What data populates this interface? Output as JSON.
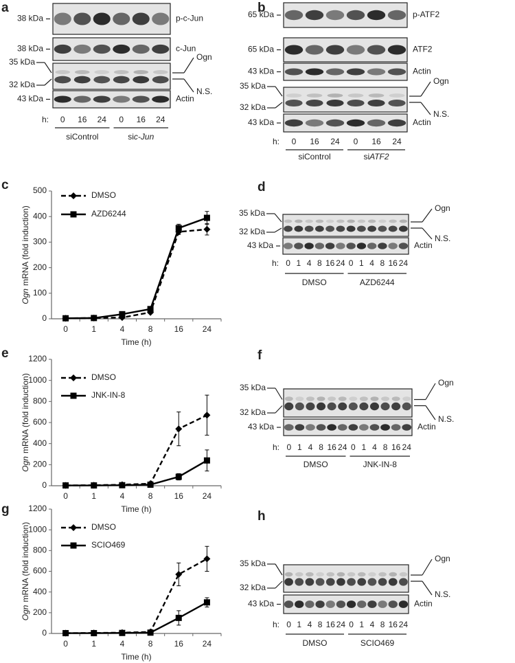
{
  "blots": [
    {
      "label": "a",
      "rows": [
        {
          "markers": [
            "38 kDa"
          ],
          "names": [
            "p-c-Jun"
          ]
        },
        {
          "markers": [
            "38 kDa"
          ],
          "names": [
            "c-Jun"
          ]
        },
        {
          "markers": [
            "35 kDa",
            "32 kDa"
          ],
          "names": [
            "Ogn",
            "N.S."
          ]
        },
        {
          "markers": [
            "43 kDa"
          ],
          "names": [
            "Actin"
          ]
        }
      ],
      "time_label": "h:",
      "times": [
        "0",
        "16",
        "24",
        "0",
        "16",
        "24"
      ],
      "groups": [
        {
          "text": "siControl"
        },
        {
          "text": "si",
          "italic": "c-Jun"
        }
      ]
    },
    {
      "label": "b",
      "rows": [
        {
          "markers": [
            "65 kDa"
          ],
          "names": [
            "p-ATF2"
          ]
        },
        {
          "markers": [
            "65 kDa"
          ],
          "names": [
            "ATF2"
          ]
        },
        {
          "markers": [
            "43 kDa"
          ],
          "names": [
            "Actin"
          ]
        },
        {
          "markers": [
            "35 kDa",
            "32 kDa"
          ],
          "names": [
            "Ogn",
            "N.S."
          ]
        },
        {
          "markers": [
            "43 kDa"
          ],
          "names": [
            "Actin"
          ]
        }
      ],
      "time_label": "h:",
      "times": [
        "0",
        "16",
        "24",
        "0",
        "16",
        "24"
      ],
      "groups": [
        {
          "text": "siControl"
        },
        {
          "text": "si",
          "italic": "ATF2"
        }
      ]
    },
    {
      "label": "d",
      "rows": [
        {
          "markers": [
            "35 kDa",
            "32 kDa"
          ],
          "names": [
            "Ogn",
            "N.S."
          ]
        },
        {
          "markers": [
            "43 kDa"
          ],
          "names": [
            "Actin"
          ]
        }
      ],
      "time_label": "h:",
      "times": [
        "0",
        "1",
        "4",
        "8",
        "16",
        "24",
        "0",
        "1",
        "4",
        "8",
        "16",
        "24"
      ],
      "groups": [
        {
          "text": "DMSO"
        },
        {
          "text": "AZD6244"
        }
      ]
    },
    {
      "label": "f",
      "rows": [
        {
          "markers": [
            "35 kDa",
            "32 kDa"
          ],
          "names": [
            "Ogn",
            "N.S."
          ]
        },
        {
          "markers": [
            "43 kDa"
          ],
          "names": [
            "Actin"
          ]
        }
      ],
      "time_label": "h:",
      "times": [
        "0",
        "1",
        "4",
        "8",
        "16",
        "24",
        "0",
        "1",
        "4",
        "8",
        "16",
        "24"
      ],
      "groups": [
        {
          "text": "DMSO"
        },
        {
          "text": "JNK-IN-8"
        }
      ]
    },
    {
      "label": "h",
      "rows": [
        {
          "markers": [
            "35 kDa",
            "32 kDa"
          ],
          "names": [
            "Ogn",
            "N.S."
          ]
        },
        {
          "markers": [
            "43 kDa"
          ],
          "names": [
            "Actin"
          ]
        }
      ],
      "time_label": "h:",
      "times": [
        "0",
        "1",
        "4",
        "8",
        "16",
        "24",
        "0",
        "1",
        "4",
        "8",
        "16",
        "24"
      ],
      "groups": [
        {
          "text": "DMSO"
        },
        {
          "text": "SCIO469"
        }
      ]
    }
  ],
  "chart_data": [
    {
      "type": "line",
      "label": "c",
      "xlabel": "Time (h)",
      "ylabel_italic": "Ogn",
      "ylabel": "mRNA (fold induction)",
      "categories": [
        "0",
        "1",
        "4",
        "8",
        "16",
        "24"
      ],
      "ylim": [
        0,
        500
      ],
      "yticks": [
        0,
        100,
        200,
        300,
        400,
        500
      ],
      "series": [
        {
          "name": "DMSO",
          "color": "#000000",
          "dashed": true,
          "marker": "diamond",
          "values": [
            2,
            3,
            5,
            25,
            340,
            350
          ],
          "errors": [
            1,
            1,
            2,
            5,
            10,
            22
          ]
        },
        {
          "name": "AZD6244",
          "color": "#000000",
          "dashed": false,
          "marker": "square",
          "values": [
            2,
            3,
            18,
            38,
            355,
            395
          ],
          "errors": [
            1,
            1,
            3,
            6,
            15,
            25
          ]
        }
      ]
    },
    {
      "type": "line",
      "label": "e",
      "xlabel": "Time (h)",
      "ylabel_italic": "Ogn",
      "ylabel": "mRNA (fold induction)",
      "categories": [
        "0",
        "1",
        "4",
        "8",
        "16",
        "24"
      ],
      "ylim": [
        0,
        1200
      ],
      "yticks": [
        0,
        200,
        400,
        600,
        800,
        1000,
        1200
      ],
      "series": [
        {
          "name": "DMSO",
          "color": "#000000",
          "dashed": true,
          "marker": "diamond",
          "values": [
            3,
            5,
            10,
            20,
            540,
            670
          ],
          "errors": [
            1,
            2,
            3,
            6,
            160,
            190
          ]
        },
        {
          "name": "JNK-IN-8",
          "color": "#000000",
          "dashed": false,
          "marker": "square",
          "values": [
            3,
            3,
            5,
            10,
            85,
            240
          ],
          "errors": [
            1,
            1,
            2,
            3,
            30,
            100
          ]
        }
      ]
    },
    {
      "type": "line",
      "label": "g",
      "xlabel": "Time (h)",
      "ylabel_italic": "Ogn",
      "ylabel": "mRNA (fold induction)",
      "categories": [
        "0",
        "1",
        "4",
        "8",
        "16",
        "24"
      ],
      "ylim": [
        0,
        1200
      ],
      "yticks": [
        0,
        200,
        400,
        600,
        800,
        1000,
        1200
      ],
      "series": [
        {
          "name": "DMSO",
          "color": "#000000",
          "dashed": true,
          "marker": "diamond",
          "values": [
            3,
            5,
            8,
            15,
            570,
            720
          ],
          "errors": [
            1,
            2,
            3,
            5,
            110,
            120
          ]
        },
        {
          "name": "SCIO469",
          "color": "#000000",
          "dashed": false,
          "marker": "square",
          "values": [
            3,
            3,
            5,
            8,
            150,
            300
          ],
          "errors": [
            1,
            1,
            2,
            3,
            70,
            45
          ]
        }
      ]
    }
  ]
}
